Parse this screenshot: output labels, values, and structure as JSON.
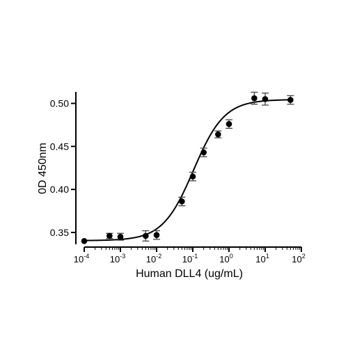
{
  "chart_data": {
    "type": "scatter",
    "xlabel": "Human DLL4 (ug/mL)",
    "ylabel": "0D 450nm",
    "x_scale": "log",
    "xlim": [
      0.0001,
      100
    ],
    "ylim": [
      0.333,
      0.515
    ],
    "x_ticks": [
      {
        "value": 0.0001,
        "base": "10",
        "exp": "-4"
      },
      {
        "value": 0.001,
        "base": "10",
        "exp": "-3"
      },
      {
        "value": 0.01,
        "base": "10",
        "exp": "-2"
      },
      {
        "value": 0.1,
        "base": "10",
        "exp": "-1"
      },
      {
        "value": 1,
        "base": "10",
        "exp": "0"
      },
      {
        "value": 10,
        "base": "10",
        "exp": "1"
      },
      {
        "value": 100,
        "base": "10",
        "exp": "2"
      }
    ],
    "y_ticks": [
      {
        "value": 0.35,
        "label": "0.35"
      },
      {
        "value": 0.4,
        "label": "0.40"
      },
      {
        "value": 0.45,
        "label": "0.45"
      },
      {
        "value": 0.5,
        "label": "0.50"
      }
    ],
    "grid": false,
    "legend": "none",
    "points": [
      {
        "x": 0.0001,
        "y": 0.34,
        "err": 0.0
      },
      {
        "x": 0.0005,
        "y": 0.346,
        "err": 0.003
      },
      {
        "x": 0.001,
        "y": 0.345,
        "err": 0.004
      },
      {
        "x": 0.005,
        "y": 0.346,
        "err": 0.006
      },
      {
        "x": 0.01,
        "y": 0.347,
        "err": 0.005
      },
      {
        "x": 0.05,
        "y": 0.386,
        "err": 0.005
      },
      {
        "x": 0.1,
        "y": 0.415,
        "err": 0.005
      },
      {
        "x": 0.2,
        "y": 0.443,
        "err": 0.005
      },
      {
        "x": 0.5,
        "y": 0.464,
        "err": 0.004
      },
      {
        "x": 1,
        "y": 0.476,
        "err": 0.005
      },
      {
        "x": 5,
        "y": 0.506,
        "err": 0.007
      },
      {
        "x": 10,
        "y": 0.505,
        "err": 0.007
      },
      {
        "x": 50,
        "y": 0.504,
        "err": 0.005
      }
    ],
    "fit": {
      "model": "4PL",
      "bottom": 0.3405,
      "top": 0.5045,
      "ec50": 0.105,
      "hill": 1.02
    },
    "colors": {
      "marker": "#000000",
      "line": "#000000",
      "axis": "#000000",
      "errorbar": "#444444"
    }
  }
}
